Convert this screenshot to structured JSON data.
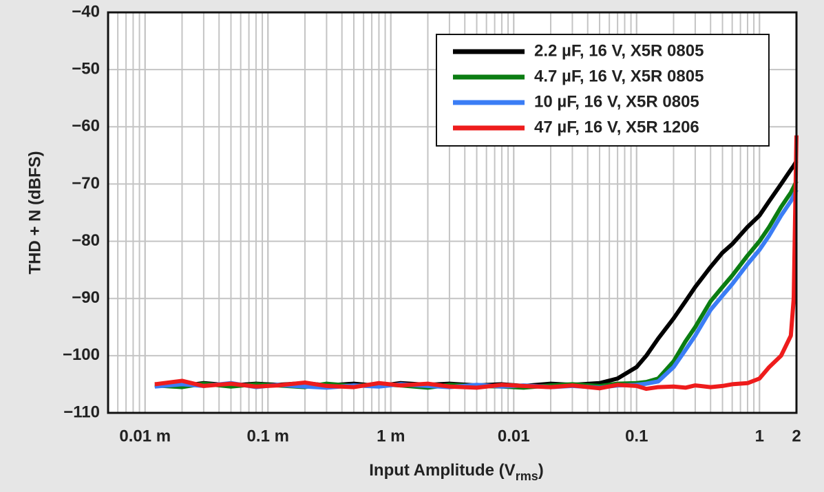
{
  "chart_data": {
    "type": "line",
    "xlabel": [
      "Input Amplitude (V",
      "rms",
      ")"
    ],
    "ylabel": "THD + N (dBFS)",
    "log_x": true,
    "grid": true,
    "legend": "top-right",
    "xlim": [
      5e-06,
      2
    ],
    "ylim": [
      -110,
      -40
    ],
    "xticks": [
      {
        "value": 1e-05,
        "label": "0.01 m"
      },
      {
        "value": 0.0001,
        "label": "0.1 m"
      },
      {
        "value": 0.001,
        "label": "1 m"
      },
      0.01,
      0.1,
      1,
      2
    ],
    "yticks": [
      {
        "value": -110,
        "label": "−110"
      },
      {
        "value": -100,
        "label": "−100"
      },
      {
        "value": -90,
        "label": "−90"
      },
      {
        "value": -80,
        "label": "−80"
      },
      {
        "value": -70,
        "label": "−70"
      },
      {
        "value": -60,
        "label": "−60"
      },
      {
        "value": -50,
        "label": "−50"
      },
      {
        "value": -40,
        "label": "−40"
      }
    ],
    "x": [
      1.2e-05,
      2e-05,
      3e-05,
      5e-05,
      8e-05,
      0.00012,
      0.0002,
      0.0003,
      0.0005,
      0.0008,
      0.0012,
      0.002,
      0.003,
      0.005,
      0.008,
      0.012,
      0.02,
      0.03,
      0.05,
      0.07,
      0.1,
      0.12,
      0.15,
      0.2,
      0.25,
      0.3,
      0.4,
      0.5,
      0.6,
      0.8,
      1.0,
      1.2,
      1.5,
      1.8,
      1.9,
      2.0
    ],
    "series": [
      {
        "name": "2.2 µF, 16 V, X5R 0805",
        "color": "#000000",
        "values": [
          -105,
          -105.3,
          -104.8,
          -105.2,
          -104.9,
          -105.1,
          -104.8,
          -105.2,
          -104.9,
          -105.3,
          -104.8,
          -105.1,
          -104.9,
          -105.2,
          -105,
          -105.3,
          -104.9,
          -105.1,
          -104.8,
          -104,
          -102,
          -100,
          -97,
          -93.5,
          -90.5,
          -88,
          -84.5,
          -82,
          -80.5,
          -77.5,
          -75.5,
          -73,
          -70,
          -67.5,
          -66.8,
          -66
        ]
      },
      {
        "name": "4.7 µF, 16 V, X5R 0805",
        "color": "#0b7d12",
        "values": [
          -105.2,
          -105.5,
          -104.9,
          -105.4,
          -105,
          -105.2,
          -105.5,
          -104.9,
          -105.3,
          -105,
          -105.2,
          -105.6,
          -105.1,
          -105.3,
          -105.4,
          -105.6,
          -105.2,
          -105,
          -105.3,
          -104.9,
          -104.8,
          -104.6,
          -104,
          -101,
          -97.5,
          -95,
          -90.5,
          -88,
          -86,
          -82.5,
          -80,
          -77.5,
          -74,
          -71.5,
          -70.5,
          -69.5
        ]
      },
      {
        "name": "10 µF, 16 V, X5R 0805",
        "color": "#3b7df5",
        "values": [
          -105.4,
          -105,
          -105.3,
          -104.8,
          -105.5,
          -105.1,
          -105.4,
          -105.6,
          -105.2,
          -105.4,
          -105,
          -105.3,
          -105.5,
          -105.1,
          -105.4,
          -105.2,
          -105.5,
          -105.3,
          -105.6,
          -105.2,
          -105.1,
          -104.9,
          -104.5,
          -102,
          -99,
          -96.5,
          -92,
          -89.5,
          -87.5,
          -84,
          -81.5,
          -79,
          -75.5,
          -73,
          -72,
          -71
        ]
      },
      {
        "name": "47 µF, 16 V, X5R 1206",
        "color": "#ee1c1c",
        "values": [
          -105,
          -104.4,
          -105.3,
          -104.9,
          -105.4,
          -105.2,
          -104.7,
          -105.3,
          -105.5,
          -104.8,
          -105.2,
          -104.9,
          -105.4,
          -105.6,
          -105.1,
          -105.3,
          -105.5,
          -105.2,
          -105.7,
          -105.1,
          -105.3,
          -105.8,
          -105.5,
          -105.4,
          -105.6,
          -105.2,
          -105.5,
          -105.3,
          -105,
          -104.8,
          -104,
          -102,
          -100,
          -96.5,
          -90,
          -61.5
        ]
      }
    ]
  }
}
